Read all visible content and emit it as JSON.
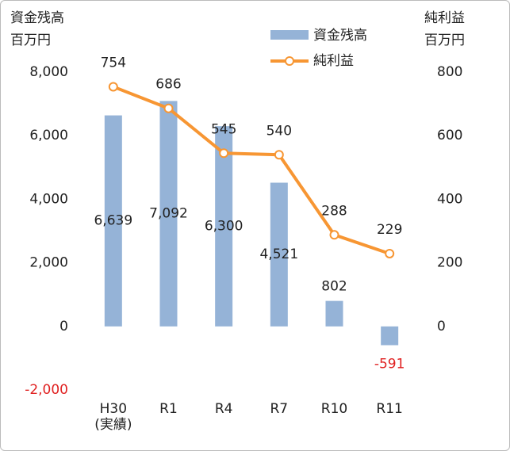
{
  "chart_data": {
    "type": "bar_line",
    "ylabel": "資金残高",
    "yunit": "百万円",
    "y2label": "純利益",
    "y2unit": "百万円",
    "categories": [
      "H30\n(実績)",
      "R1",
      "R4",
      "R7",
      "R10",
      "R11"
    ],
    "series": [
      {
        "name": "資金残高",
        "type": "bar",
        "color": "#95b3d7",
        "values": [
          6639,
          7092,
          6300,
          4521,
          802,
          -591
        ],
        "value_labels": [
          "6,639",
          "7,092",
          "6,300",
          "4,521",
          "802",
          "-591"
        ]
      },
      {
        "name": "純利益",
        "type": "line",
        "axis": "y2",
        "color": "#f79633",
        "values": [
          754,
          686,
          545,
          540,
          288,
          229
        ]
      }
    ],
    "ylim": [
      -2000,
      8000
    ],
    "yticks": [
      {
        "value": -2000,
        "label": "-2,000"
      },
      0,
      {
        "value": 2000,
        "label": "2,000"
      },
      {
        "value": 4000,
        "label": "4,000"
      },
      {
        "value": 6000,
        "label": "6,000"
      },
      {
        "value": 8000,
        "label": "8,000"
      }
    ],
    "y2lim": [
      -200,
      800
    ],
    "y2ticks": [
      0,
      200,
      400,
      600,
      800
    ],
    "negative_color": "#e02020",
    "legend": "top"
  }
}
